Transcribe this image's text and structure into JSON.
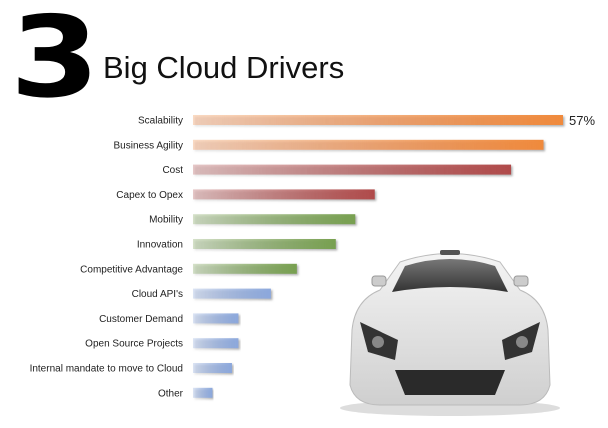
{
  "header": {
    "number": "3",
    "title": "Big Cloud Drivers"
  },
  "chart_data": {
    "type": "bar",
    "orientation": "horizontal",
    "title": "Big Cloud Drivers",
    "categories": [
      "Scalability",
      "Business Agility",
      "Cost",
      "Capex to Opex",
      "Mobility",
      "Innovation",
      "Competitive Advantage",
      "Cloud API's",
      "Customer Demand",
      "Open Source Projects",
      "Internal mandate to move to Cloud",
      "Other"
    ],
    "values": [
      57,
      54,
      49,
      28,
      25,
      22,
      16,
      12,
      7,
      7,
      6,
      3
    ],
    "unit": "%",
    "data_labels": {
      "0": "57%"
    },
    "colors": [
      "#f08a3c",
      "#f08a3c",
      "#b04a4a",
      "#b04a4a",
      "#78a050",
      "#78a050",
      "#78a050",
      "#8ca8dc",
      "#8ca8dc",
      "#8ca8dc",
      "#8ca8dc",
      "#8ca8dc"
    ],
    "grid": false,
    "legend": "none"
  }
}
